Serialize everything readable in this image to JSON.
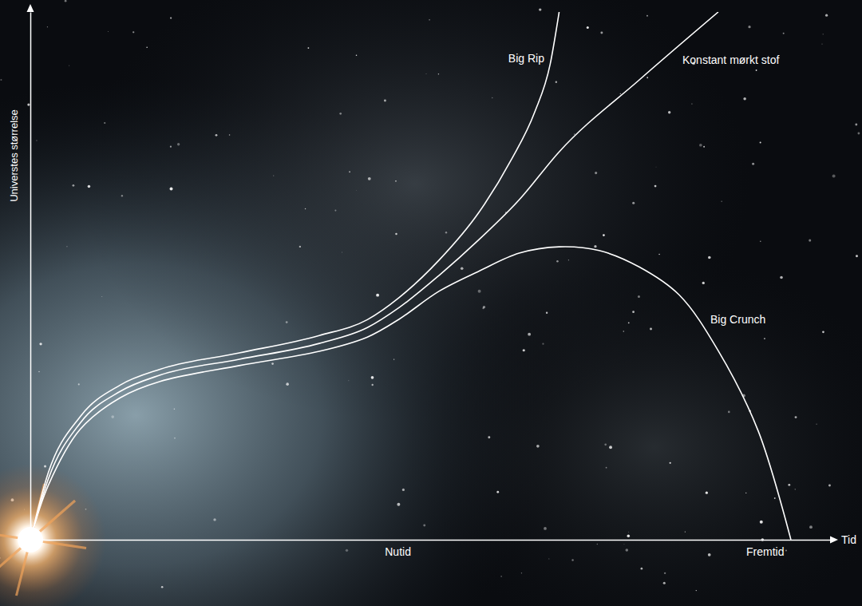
{
  "chart_data": {
    "type": "line",
    "xlabel": "Tid",
    "ylabel": "Universtes størrelse",
    "xlim": [
      0,
      98
    ],
    "ylim": [
      0,
      100
    ],
    "xticks": [
      {
        "value": 45,
        "label": "Nutid"
      },
      {
        "value": 90,
        "label": "Fremtid"
      }
    ],
    "yticks": [],
    "grid": false,
    "tick_labels": "x",
    "series": [
      {
        "name": "Big Rip",
        "color": "#ffffff",
        "x": [
          0,
          2.2,
          6.1,
          11.0,
          15.9,
          25.6,
          35.4,
          41.3,
          45.2,
          50.1,
          55.0,
          58.9,
          61.8,
          63.7,
          64.8
        ],
        "values": [
          0,
          12.7,
          23.3,
          29.3,
          32.3,
          35.4,
          38.7,
          41.7,
          45.9,
          53.0,
          62.1,
          71.9,
          81.0,
          90.1,
          100
        ]
      },
      {
        "name": "Konstant mørkt stof",
        "color": "#ffffff",
        "x": [
          0,
          2.2,
          6.1,
          11.0,
          15.9,
          25.6,
          35.4,
          41.3,
          45.2,
          50.1,
          55.0,
          59.9,
          64.8,
          74.6,
          84.3
        ],
        "values": [
          0,
          11.5,
          22.1,
          28.1,
          31.2,
          34.2,
          37.2,
          40.2,
          44.0,
          50.1,
          56.9,
          64.4,
          73.5,
          87.1,
          100
        ]
      },
      {
        "name": "Big Crunch",
        "color": "#ffffff",
        "x": [
          0,
          2.2,
          6.1,
          11.0,
          15.9,
          25.6,
          35.4,
          41.3,
          45.2,
          50.1,
          55.0,
          59.9,
          64.8,
          69.7,
          74.6,
          79.5,
          84.3,
          89.2,
          93.2
        ],
        "values": [
          0,
          10.3,
          20.9,
          26.9,
          30.0,
          33.0,
          35.7,
          38.4,
          41.8,
          47.1,
          50.9,
          54.3,
          55.5,
          54.8,
          51.7,
          46.4,
          35.8,
          20.6,
          0
        ]
      }
    ]
  }
}
